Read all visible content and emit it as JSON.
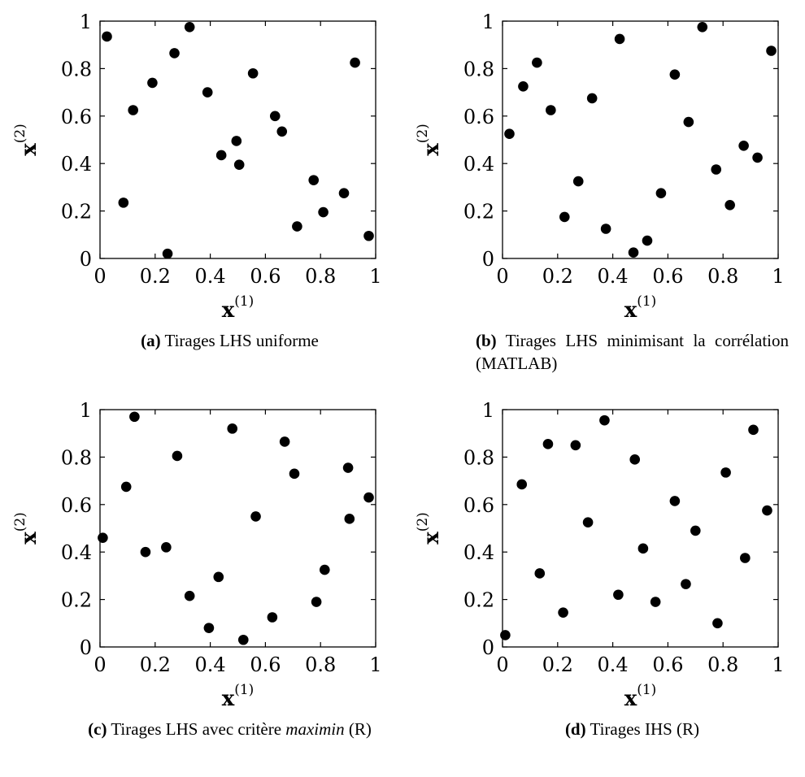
{
  "chart_data": [
    {
      "type": "scatter",
      "label": "(a)",
      "caption": "Tirages LHS uniforme",
      "xlabel": "x",
      "xlabel_sup": "(1)",
      "ylabel": "x",
      "ylabel_sup": "(2)",
      "xlim": [
        0,
        1
      ],
      "ylim": [
        0,
        1
      ],
      "xticks": [
        "0",
        "0.2",
        "0.4",
        "0.6",
        "0.8",
        "1"
      ],
      "yticks": [
        "0",
        "0.2",
        "0.4",
        "0.6",
        "0.8",
        "1"
      ],
      "grid": false,
      "points": [
        {
          "x": 0.025,
          "y": 0.935
        },
        {
          "x": 0.085,
          "y": 0.235
        },
        {
          "x": 0.12,
          "y": 0.625
        },
        {
          "x": 0.19,
          "y": 0.74
        },
        {
          "x": 0.245,
          "y": 0.02
        },
        {
          "x": 0.27,
          "y": 0.865
        },
        {
          "x": 0.325,
          "y": 0.975
        },
        {
          "x": 0.39,
          "y": 0.7
        },
        {
          "x": 0.44,
          "y": 0.435
        },
        {
          "x": 0.495,
          "y": 0.495
        },
        {
          "x": 0.505,
          "y": 0.395
        },
        {
          "x": 0.555,
          "y": 0.78
        },
        {
          "x": 0.635,
          "y": 0.6
        },
        {
          "x": 0.66,
          "y": 0.535
        },
        {
          "x": 0.715,
          "y": 0.135
        },
        {
          "x": 0.775,
          "y": 0.33
        },
        {
          "x": 0.81,
          "y": 0.195
        },
        {
          "x": 0.885,
          "y": 0.275
        },
        {
          "x": 0.925,
          "y": 0.825
        },
        {
          "x": 0.975,
          "y": 0.095
        }
      ]
    },
    {
      "type": "scatter",
      "label": "(b)",
      "caption": "Tirages LHS minimisant la corrélation (MATLAB)",
      "xlabel": "x",
      "xlabel_sup": "(1)",
      "ylabel": "x",
      "ylabel_sup": "(2)",
      "xlim": [
        0,
        1
      ],
      "ylim": [
        0,
        1
      ],
      "xticks": [
        "0",
        "0.2",
        "0.4",
        "0.6",
        "0.8",
        "1"
      ],
      "yticks": [
        "0",
        "0.2",
        "0.4",
        "0.6",
        "0.8",
        "1"
      ],
      "grid": false,
      "points": [
        {
          "x": 0.025,
          "y": 0.525
        },
        {
          "x": 0.075,
          "y": 0.725
        },
        {
          "x": 0.125,
          "y": 0.825
        },
        {
          "x": 0.175,
          "y": 0.625
        },
        {
          "x": 0.225,
          "y": 0.175
        },
        {
          "x": 0.275,
          "y": 0.325
        },
        {
          "x": 0.325,
          "y": 0.675
        },
        {
          "x": 0.375,
          "y": 0.125
        },
        {
          "x": 0.425,
          "y": 0.925
        },
        {
          "x": 0.475,
          "y": 0.025
        },
        {
          "x": 0.525,
          "y": 0.075
        },
        {
          "x": 0.575,
          "y": 0.275
        },
        {
          "x": 0.625,
          "y": 0.775
        },
        {
          "x": 0.675,
          "y": 0.575
        },
        {
          "x": 0.725,
          "y": 0.975
        },
        {
          "x": 0.775,
          "y": 0.375
        },
        {
          "x": 0.825,
          "y": 0.225
        },
        {
          "x": 0.875,
          "y": 0.475
        },
        {
          "x": 0.925,
          "y": 0.425
        },
        {
          "x": 0.975,
          "y": 0.875
        }
      ]
    },
    {
      "type": "scatter",
      "label": "(c)",
      "caption_pre": "Tirages LHS avec critère ",
      "caption_em": "maximin",
      "caption_post": " (R)",
      "xlabel": "x",
      "xlabel_sup": "(1)",
      "ylabel": "x",
      "ylabel_sup": "(2)",
      "xlim": [
        0,
        1
      ],
      "ylim": [
        0,
        1
      ],
      "xticks": [
        "0",
        "0.2",
        "0.4",
        "0.6",
        "0.8",
        "1"
      ],
      "yticks": [
        "0",
        "0.2",
        "0.4",
        "0.6",
        "0.8",
        "1"
      ],
      "grid": false,
      "points": [
        {
          "x": 0.01,
          "y": 0.46
        },
        {
          "x": 0.095,
          "y": 0.675
        },
        {
          "x": 0.125,
          "y": 0.97
        },
        {
          "x": 0.165,
          "y": 0.4
        },
        {
          "x": 0.24,
          "y": 0.42
        },
        {
          "x": 0.28,
          "y": 0.805
        },
        {
          "x": 0.325,
          "y": 0.215
        },
        {
          "x": 0.395,
          "y": 0.08
        },
        {
          "x": 0.43,
          "y": 0.295
        },
        {
          "x": 0.48,
          "y": 0.92
        },
        {
          "x": 0.52,
          "y": 0.03
        },
        {
          "x": 0.565,
          "y": 0.55
        },
        {
          "x": 0.625,
          "y": 0.125
        },
        {
          "x": 0.67,
          "y": 0.865
        },
        {
          "x": 0.705,
          "y": 0.73
        },
        {
          "x": 0.785,
          "y": 0.19
        },
        {
          "x": 0.815,
          "y": 0.325
        },
        {
          "x": 0.9,
          "y": 0.755
        },
        {
          "x": 0.905,
          "y": 0.54
        },
        {
          "x": 0.975,
          "y": 0.63
        }
      ]
    },
    {
      "type": "scatter",
      "label": "(d)",
      "caption": "Tirages IHS (R)",
      "xlabel": "x",
      "xlabel_sup": "(1)",
      "ylabel": "x",
      "ylabel_sup": "(2)",
      "xlim": [
        0,
        1
      ],
      "ylim": [
        0,
        1
      ],
      "xticks": [
        "0",
        "0.2",
        "0.4",
        "0.6",
        "0.8",
        "1"
      ],
      "yticks": [
        "0",
        "0.2",
        "0.4",
        "0.6",
        "0.8",
        "1"
      ],
      "grid": false,
      "points": [
        {
          "x": 0.01,
          "y": 0.05
        },
        {
          "x": 0.07,
          "y": 0.685
        },
        {
          "x": 0.135,
          "y": 0.31
        },
        {
          "x": 0.165,
          "y": 0.855
        },
        {
          "x": 0.22,
          "y": 0.145
        },
        {
          "x": 0.265,
          "y": 0.85
        },
        {
          "x": 0.31,
          "y": 0.525
        },
        {
          "x": 0.37,
          "y": 0.955
        },
        {
          "x": 0.42,
          "y": 0.22
        },
        {
          "x": 0.48,
          "y": 0.79
        },
        {
          "x": 0.51,
          "y": 0.415
        },
        {
          "x": 0.555,
          "y": 0.19
        },
        {
          "x": 0.625,
          "y": 0.615
        },
        {
          "x": 0.665,
          "y": 0.265
        },
        {
          "x": 0.7,
          "y": 0.49
        },
        {
          "x": 0.78,
          "y": 0.1
        },
        {
          "x": 0.81,
          "y": 0.735
        },
        {
          "x": 0.88,
          "y": 0.375
        },
        {
          "x": 0.91,
          "y": 0.915
        },
        {
          "x": 0.96,
          "y": 0.575
        }
      ]
    }
  ]
}
